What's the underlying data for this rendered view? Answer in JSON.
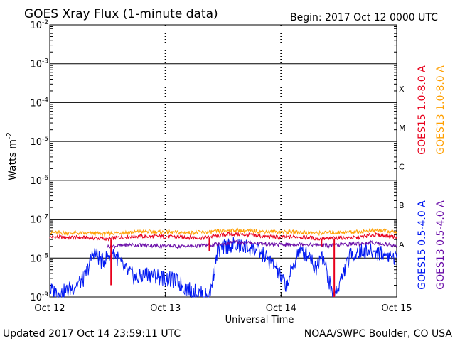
{
  "header": {
    "title": "GOES Xray Flux (1-minute data)",
    "begin": "Begin:  2017 Oct 12 0000 UTC"
  },
  "footer": {
    "updated": "Updated 2017 Oct 14 23:59:11 UTC",
    "source": "NOAA/SWPC Boulder, CO USA"
  },
  "colors": {
    "goes15_long": "#e8001c",
    "goes13_long": "#ff9f00",
    "goes15_short": "#0018f2",
    "goes13_short": "#6a0ca8"
  },
  "chart_data": {
    "type": "line",
    "yscale": "log",
    "ylim": [
      1e-09,
      0.01
    ],
    "xlim": [
      0,
      3
    ],
    "ylabel": "Watts m",
    "ylabel_sup": "-2",
    "xlabel": "Universal Time",
    "x_ticks": [
      {
        "value": 0,
        "label": "Oct 12"
      },
      {
        "value": 1,
        "label": "Oct 13"
      },
      {
        "value": 2,
        "label": "Oct 14"
      },
      {
        "value": 3,
        "label": "Oct 15"
      }
    ],
    "y_ticks": [
      {
        "exp": -9,
        "base": "10",
        "sup": "-9"
      },
      {
        "exp": -8,
        "base": "10",
        "sup": "-8"
      },
      {
        "exp": -7,
        "base": "10",
        "sup": "-7"
      },
      {
        "exp": -6,
        "base": "10",
        "sup": "-6"
      },
      {
        "exp": -5,
        "base": "10",
        "sup": "-5"
      },
      {
        "exp": -4,
        "base": "10",
        "sup": "-4"
      },
      {
        "exp": -3,
        "base": "10",
        "sup": "-3"
      },
      {
        "exp": -2,
        "base": "10",
        "sup": "-2"
      }
    ],
    "flare_classes": [
      {
        "label": "X",
        "exp": -4
      },
      {
        "label": "M",
        "exp": -5
      },
      {
        "label": "C",
        "exp": -6
      },
      {
        "label": "B",
        "exp": -7
      },
      {
        "label": "A",
        "exp": -8
      }
    ],
    "grid": true,
    "legend_placement": "right",
    "series": [
      {
        "name": "GOES15 1.0-8.0 A",
        "color_key": "goes15_long",
        "points": [
          [
            0,
            3.5e-08
          ],
          [
            0.25,
            3.4e-08
          ],
          [
            0.45,
            3.2e-08
          ],
          [
            0.5,
            3e-08
          ],
          [
            0.55,
            3.3e-08
          ],
          [
            0.7,
            3.6e-08
          ],
          [
            0.95,
            3.6e-08
          ],
          [
            1.15,
            3.5e-08
          ],
          [
            1.3,
            3.3e-08
          ],
          [
            1.45,
            3.7e-08
          ],
          [
            1.55,
            4.2e-08
          ],
          [
            1.7,
            4e-08
          ],
          [
            1.85,
            3.6e-08
          ],
          [
            2.0,
            3.4e-08
          ],
          [
            2.15,
            3.6e-08
          ],
          [
            2.3,
            3.2e-08
          ],
          [
            2.4,
            3.1e-08
          ],
          [
            2.5,
            3.4e-08
          ],
          [
            2.65,
            3.3e-08
          ],
          [
            2.8,
            4e-08
          ],
          [
            3.0,
            3.5e-08
          ]
        ]
      },
      {
        "name": "GOES13 1.0-8.0 A",
        "color_key": "goes13_long",
        "points": [
          [
            0,
            4.5e-08
          ],
          [
            0.25,
            4.4e-08
          ],
          [
            0.45,
            4.2e-08
          ],
          [
            0.6,
            4.5e-08
          ],
          [
            0.8,
            4.8e-08
          ],
          [
            1.0,
            4.6e-08
          ],
          [
            1.2,
            4.5e-08
          ],
          [
            1.4,
            4.7e-08
          ],
          [
            1.55,
            5.2e-08
          ],
          [
            1.7,
            5e-08
          ],
          [
            1.9,
            4.8e-08
          ],
          [
            2.1,
            4.7e-08
          ],
          [
            2.3,
            4.4e-08
          ],
          [
            2.5,
            4.6e-08
          ],
          [
            2.7,
            4.8e-08
          ],
          [
            2.85,
            5.2e-08
          ],
          [
            3.0,
            4.5e-08
          ]
        ]
      },
      {
        "name": "GOES15 0.5-4.0 A",
        "color_key": "goes15_short",
        "points": [
          [
            0,
            1.5e-09
          ],
          [
            0.1,
            1.2e-09
          ],
          [
            0.2,
            1.8e-09
          ],
          [
            0.3,
            3e-09
          ],
          [
            0.38,
            1.5e-08
          ],
          [
            0.45,
            8e-09
          ],
          [
            0.55,
            1.4e-08
          ],
          [
            0.65,
            5e-09
          ],
          [
            0.75,
            3e-09
          ],
          [
            0.85,
            4e-09
          ],
          [
            1.0,
            3e-09
          ],
          [
            1.1,
            2.5e-09
          ],
          [
            1.2,
            1.5e-09
          ],
          [
            1.3,
            1.2e-09
          ],
          [
            1.38,
            1e-09
          ],
          [
            1.45,
            1.5e-08
          ],
          [
            1.55,
            2.2e-08
          ],
          [
            1.65,
            2e-08
          ],
          [
            1.75,
            1.8e-08
          ],
          [
            1.85,
            1.2e-08
          ],
          [
            1.95,
            6e-09
          ],
          [
            2.0,
            3e-09
          ],
          [
            2.05,
            2e-09
          ],
          [
            2.15,
            1.5e-08
          ],
          [
            2.25,
            1.2e-08
          ],
          [
            2.3,
            5e-09
          ],
          [
            2.35,
            1.5e-08
          ],
          [
            2.45,
            1e-09
          ],
          [
            2.5,
            2e-09
          ],
          [
            2.6,
            1.2e-08
          ],
          [
            2.7,
            1.5e-08
          ],
          [
            2.85,
            1.4e-08
          ],
          [
            3.0,
            1e-08
          ]
        ]
      },
      {
        "name": "GOES13 0.5-4.0 A",
        "color_key": "goes13_short",
        "points": [
          [
            0.5,
            2e-08
          ],
          [
            0.7,
            2.2e-08
          ],
          [
            0.9,
            2.1e-08
          ],
          [
            1.1,
            2e-08
          ],
          [
            1.3,
            2.1e-08
          ],
          [
            1.5,
            2.3e-08
          ],
          [
            1.6,
            2.6e-08
          ],
          [
            1.8,
            2.4e-08
          ],
          [
            2.0,
            2.2e-08
          ],
          [
            2.2,
            2.3e-08
          ],
          [
            2.4,
            2.1e-08
          ],
          [
            2.6,
            2.3e-08
          ],
          [
            2.8,
            2.5e-08
          ],
          [
            3.0,
            2.1e-08
          ]
        ]
      }
    ],
    "spikes": [
      {
        "x": 0.53,
        "from": 3e-08,
        "to": 2e-09,
        "color_key": "goes15_long"
      },
      {
        "x": 1.38,
        "from": 3.3e-08,
        "to": 1.5e-08,
        "color_key": "goes15_long"
      },
      {
        "x": 2.35,
        "from": 3.1e-08,
        "to": 2e-08,
        "color_key": "goes15_long"
      },
      {
        "x": 2.46,
        "from": 3.2e-08,
        "to": 1e-09,
        "color_key": "goes15_long"
      }
    ]
  }
}
